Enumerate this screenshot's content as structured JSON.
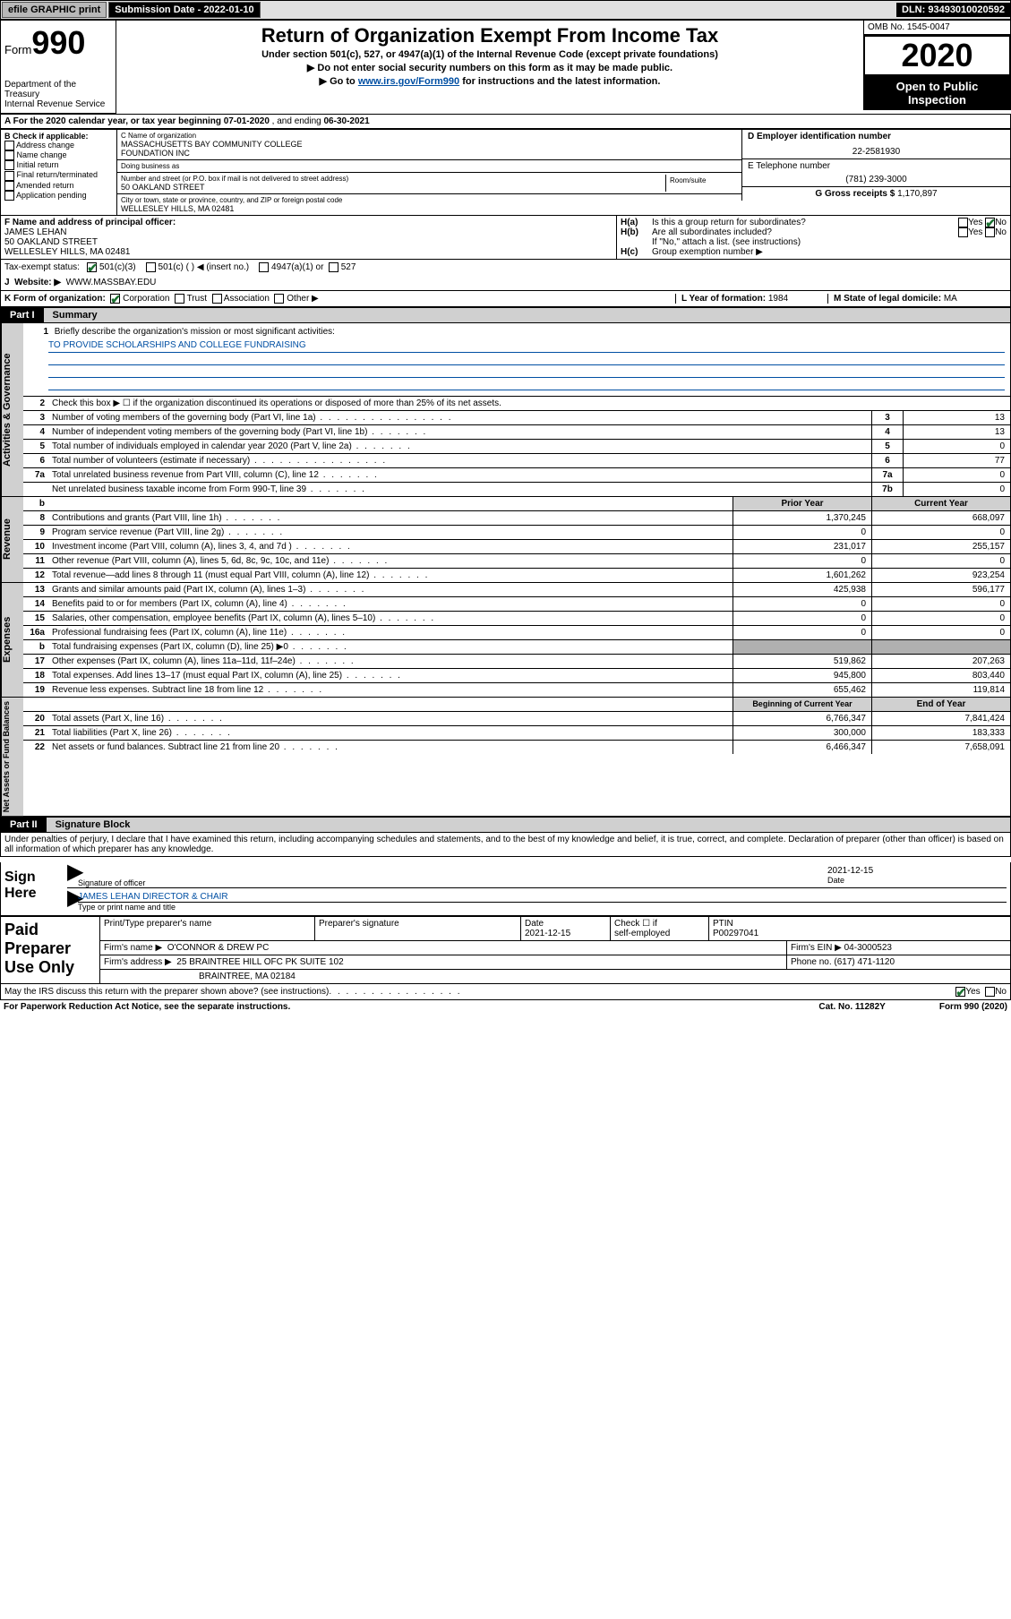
{
  "topbar": {
    "efile": "efile GRAPHIC print",
    "sub_label": "Submission Date - 2022-01-10",
    "dln": "DLN: 93493010020592"
  },
  "header": {
    "form_word": "Form",
    "form_num": "990",
    "dept1": "Department of the Treasury",
    "dept2": "Internal Revenue Service",
    "title": "Return of Organization Exempt From Income Tax",
    "sub1": "Under section 501(c), 527, or 4947(a)(1) of the Internal Revenue Code (except private foundations)",
    "sub2": "▶ Do not enter social security numbers on this form as it may be made public.",
    "sub3a": "▶ Go to ",
    "sub3_link": "www.irs.gov/Form990",
    "sub3b": " for instructions and the latest information.",
    "omb": "OMB No. 1545-0047",
    "year": "2020",
    "open1": "Open to Public",
    "open2": "Inspection"
  },
  "secA": {
    "text_a": "A For the 2020 calendar year, or tax year beginning ",
    "begin": "07-01-2020",
    "text_b": " , and ending ",
    "end": "06-30-2021"
  },
  "colB": {
    "hdr": "B Check if applicable:",
    "items": [
      "Address change",
      "Name change",
      "Initial return",
      "Final return/terminated",
      "Amended return",
      "Application pending"
    ]
  },
  "colC": {
    "name_lbl": "C Name of organization",
    "name1": "MASSACHUSETTS BAY COMMUNITY COLLEGE",
    "name2": "FOUNDATION INC",
    "dba_lbl": "Doing business as",
    "dba": "",
    "street_lbl": "Number and street (or P.O. box if mail is not delivered to street address)",
    "room_lbl": "Room/suite",
    "street": "50 OAKLAND STREET",
    "city_lbl": "City or town, state or province, country, and ZIP or foreign postal code",
    "city": "WELLESLEY HILLS, MA  02481"
  },
  "colDE": {
    "d_lbl": "D Employer identification number",
    "d_val": "22-2581930",
    "e_lbl": "E Telephone number",
    "e_val": "(781) 239-3000",
    "g_lbl": "G Gross receipts $",
    "g_val": "1,170,897"
  },
  "rowF": {
    "lbl": "F Name and address of principal officer:",
    "name": "JAMES LEHAN",
    "addr1": "50 OAKLAND STREET",
    "addr2": "WELLESLEY HILLS, MA  02481"
  },
  "rowH": {
    "ha_lbl": "H(a)",
    "ha_txt": "Is this a group return for subordinates?",
    "hb_lbl": "H(b)",
    "hb_txt": "Are all subordinates included?",
    "hb_note": "If \"No,\" attach a list. (see instructions)",
    "hc_lbl": "H(c)",
    "hc_txt": "Group exemption number ▶",
    "yes": "Yes",
    "no": "No"
  },
  "rowI": {
    "lbl": "Tax-exempt status:",
    "o1": "501(c)(3)",
    "o2": "501(c) (  ) ◀ (insert no.)",
    "o3": "4947(a)(1) or",
    "o4": "527"
  },
  "rowJ": {
    "lbl": "J",
    "txt": "Website: ▶",
    "val": "WWW.MASSBAY.EDU"
  },
  "rowK": {
    "lbl": "K Form of organization:",
    "o1": "Corporation",
    "o2": "Trust",
    "o3": "Association",
    "o4": "Other ▶",
    "l_lbl": "L Year of formation:",
    "l_val": "1984",
    "m_lbl": "M State of legal domicile:",
    "m_val": "MA"
  },
  "part1": {
    "hdr": "Part I",
    "title": "Summary"
  },
  "sideLabels": {
    "gov": "Activities & Governance",
    "rev": "Revenue",
    "exp": "Expenses",
    "net": "Net Assets or Fund Balances"
  },
  "gov": {
    "l1_num": "1",
    "l1": "Briefly describe the organization's mission or most significant activities:",
    "l1_val": "TO PROVIDE SCHOLARSHIPS AND COLLEGE FUNDRAISING",
    "l2_num": "2",
    "l2": "Check this box ▶ ☐ if the organization discontinued its operations or disposed of more than 25% of its net assets.",
    "l3_num": "3",
    "l3": "Number of voting members of the governing body (Part VI, line 1a)",
    "l4_num": "4",
    "l4": "Number of independent voting members of the governing body (Part VI, line 1b)",
    "l5_num": "5",
    "l5": "Total number of individuals employed in calendar year 2020 (Part V, line 2a)",
    "l6_num": "6",
    "l6": "Total number of volunteers (estimate if necessary)",
    "l7a_num": "7a",
    "l7a": "Total unrelated business revenue from Part VIII, column (C), line 12",
    "l7b_num": "",
    "l7b": "Net unrelated business taxable income from Form 990-T, line 39",
    "vals": {
      "3": "13",
      "4": "13",
      "5": "0",
      "6": "77",
      "7a": "0",
      "7b": "0"
    },
    "boxnums": {
      "3": "3",
      "4": "4",
      "5": "5",
      "6": "6",
      "7a": "7a",
      "7b": "7b"
    }
  },
  "revexp_hdr": {
    "b": "b",
    "prior": "Prior Year",
    "current": "Current Year"
  },
  "rev": [
    {
      "n": "8",
      "t": "Contributions and grants (Part VIII, line 1h)",
      "p": "1,370,245",
      "c": "668,097"
    },
    {
      "n": "9",
      "t": "Program service revenue (Part VIII, line 2g)",
      "p": "0",
      "c": "0"
    },
    {
      "n": "10",
      "t": "Investment income (Part VIII, column (A), lines 3, 4, and 7d )",
      "p": "231,017",
      "c": "255,157"
    },
    {
      "n": "11",
      "t": "Other revenue (Part VIII, column (A), lines 5, 6d, 8c, 9c, 10c, and 11e)",
      "p": "0",
      "c": "0"
    },
    {
      "n": "12",
      "t": "Total revenue—add lines 8 through 11 (must equal Part VIII, column (A), line 12)",
      "p": "1,601,262",
      "c": "923,254"
    }
  ],
  "exp": [
    {
      "n": "13",
      "t": "Grants and similar amounts paid (Part IX, column (A), lines 1–3)",
      "p": "425,938",
      "c": "596,177"
    },
    {
      "n": "14",
      "t": "Benefits paid to or for members (Part IX, column (A), line 4)",
      "p": "0",
      "c": "0"
    },
    {
      "n": "15",
      "t": "Salaries, other compensation, employee benefits (Part IX, column (A), lines 5–10)",
      "p": "0",
      "c": "0"
    },
    {
      "n": "16a",
      "t": "Professional fundraising fees (Part IX, column (A), line 11e)",
      "p": "0",
      "c": "0"
    },
    {
      "n": "b",
      "t": "Total fundraising expenses (Part IX, column (D), line 25) ▶0",
      "p": "",
      "c": "",
      "shade": true
    },
    {
      "n": "17",
      "t": "Other expenses (Part IX, column (A), lines 11a–11d, 11f–24e)",
      "p": "519,862",
      "c": "207,263"
    },
    {
      "n": "18",
      "t": "Total expenses. Add lines 13–17 (must equal Part IX, column (A), line 25)",
      "p": "945,800",
      "c": "803,440"
    },
    {
      "n": "19",
      "t": "Revenue less expenses. Subtract line 18 from line 12",
      "p": "655,462",
      "c": "119,814"
    }
  ],
  "net_hdr": {
    "begin": "Beginning of Current Year",
    "end": "End of Year"
  },
  "net": [
    {
      "n": "20",
      "t": "Total assets (Part X, line 16)",
      "p": "6,766,347",
      "c": "7,841,424"
    },
    {
      "n": "21",
      "t": "Total liabilities (Part X, line 26)",
      "p": "300,000",
      "c": "183,333"
    },
    {
      "n": "22",
      "t": "Net assets or fund balances. Subtract line 21 from line 20",
      "p": "6,466,347",
      "c": "7,658,091"
    }
  ],
  "part2": {
    "hdr": "Part II",
    "title": "Signature Block"
  },
  "sig": {
    "decl": "Under penalties of perjury, I declare that I have examined this return, including accompanying schedules and statements, and to the best of my knowledge and belief, it is true, correct, and complete. Declaration of preparer (other than officer) is based on all information of which preparer has any knowledge.",
    "sign_here": "Sign Here",
    "sig_officer": "Signature of officer",
    "date_lbl": "Date",
    "date": "2021-12-15",
    "name": "JAMES LEHAN  DIRECTOR & CHAIR",
    "name_lbl": "Type or print name and title"
  },
  "prep": {
    "title": "Paid Preparer Use Only",
    "h1": "Print/Type preparer's name",
    "h2": "Preparer's signature",
    "h3": "Date",
    "h3v": "2021-12-15",
    "h4a": "Check ☐ if",
    "h4b": "self-employed",
    "h5": "PTIN",
    "h5v": "P00297041",
    "firm_lbl": "Firm's name    ▶",
    "firm": "O'CONNOR & DREW PC",
    "ein_lbl": "Firm's EIN ▶",
    "ein": "04-3000523",
    "addr_lbl": "Firm's address ▶",
    "addr1": "25 BRAINTREE HILL OFC PK SUITE 102",
    "addr2": "BRAINTREE, MA  02184",
    "phone_lbl": "Phone no.",
    "phone": "(617) 471-1120"
  },
  "foot": {
    "q": "May the IRS discuss this return with the preparer shown above? (see instructions)",
    "yes": "Yes",
    "no": "No"
  },
  "bottom": {
    "l": "For Paperwork Reduction Act Notice, see the separate instructions.",
    "m": "Cat. No. 11282Y",
    "r": "Form 990 (2020)"
  }
}
